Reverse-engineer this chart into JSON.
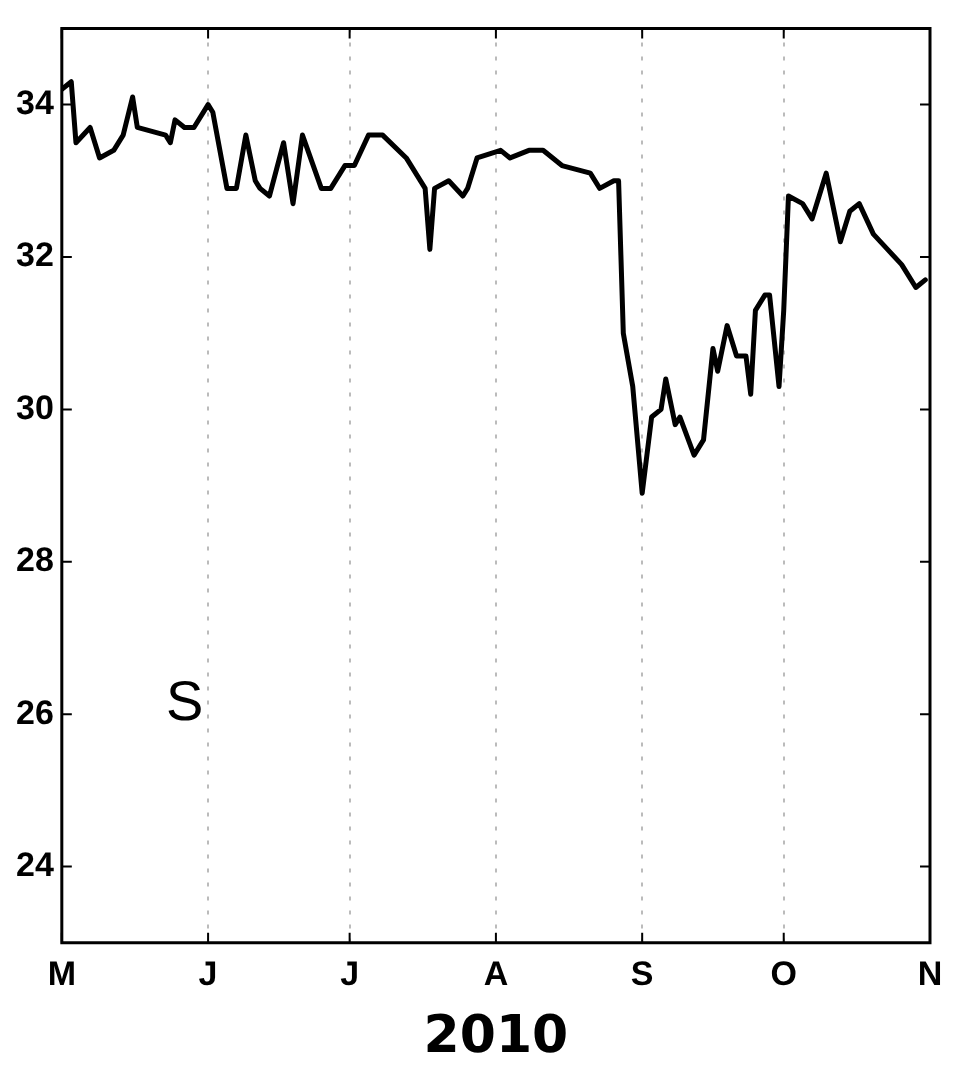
{
  "chart_data": {
    "type": "line",
    "xlabel": "2010",
    "annotations": [
      "S"
    ],
    "categories": [
      "M",
      null,
      null,
      null,
      null,
      null,
      null,
      null,
      null,
      null,
      null,
      null,
      null,
      null,
      null,
      null,
      null,
      null,
      null,
      null,
      null,
      null,
      null,
      null,
      null,
      null,
      null,
      null,
      null,
      null,
      null,
      "J",
      null,
      null,
      null,
      null,
      null,
      null,
      null,
      null,
      null,
      null,
      null,
      null,
      null,
      null,
      null,
      null,
      null,
      null,
      null,
      null,
      null,
      null,
      null,
      null,
      null,
      null,
      null,
      null,
      null,
      "J",
      null,
      null,
      null,
      null,
      null,
      null,
      null,
      null,
      null,
      null,
      null,
      null,
      null,
      null,
      null,
      null,
      null,
      null,
      null,
      null,
      null,
      null,
      null,
      null,
      null,
      null,
      null,
      null,
      null,
      null,
      "A",
      null,
      null,
      null,
      null,
      null,
      null,
      null,
      null,
      null,
      null,
      null,
      null,
      null,
      null,
      null,
      null,
      null,
      null,
      null,
      null,
      null,
      null,
      null,
      null,
      null,
      null,
      null,
      null,
      null,
      null,
      "S",
      null,
      null,
      null,
      null,
      null,
      null,
      null,
      null,
      null,
      null,
      null,
      null,
      null,
      null,
      null,
      null,
      null,
      null,
      null,
      null,
      null,
      null,
      null,
      null,
      null,
      null,
      null,
      null,
      null,
      "O",
      null,
      null,
      null,
      null,
      null,
      null,
      null,
      null,
      null,
      null,
      null,
      null,
      null,
      null,
      null,
      null,
      null,
      null,
      null,
      null,
      null,
      null,
      null,
      null,
      null,
      null,
      null,
      null,
      null,
      null,
      "N"
    ],
    "series": [
      {
        "color": "#000000",
        "values": [
          34.2,
          null,
          34.3,
          33.5,
          null,
          null,
          33.7,
          null,
          33.3,
          null,
          null,
          33.4,
          null,
          33.6,
          null,
          34.1,
          33.7,
          null,
          null,
          null,
          null,
          null,
          33.6,
          33.5,
          33.8,
          null,
          33.7,
          null,
          33.7,
          null,
          null,
          34.0,
          33.9,
          null,
          null,
          32.9,
          null,
          32.9,
          null,
          33.6,
          null,
          33.0,
          32.9,
          null,
          32.8,
          null,
          null,
          33.5,
          null,
          32.7,
          null,
          33.6,
          null,
          null,
          null,
          32.9,
          null,
          32.9,
          null,
          null,
          33.2,
          null,
          33.2,
          null,
          null,
          33.6,
          null,
          null,
          33.6,
          null,
          null,
          null,
          null,
          33.3,
          null,
          null,
          null,
          32.9,
          32.1,
          32.9,
          null,
          null,
          33.0,
          null,
          null,
          32.8,
          32.9,
          null,
          33.3,
          null,
          null,
          null,
          null,
          33.4,
          null,
          33.3,
          null,
          null,
          null,
          33.4,
          null,
          null,
          33.4,
          null,
          null,
          null,
          33.2,
          null,
          null,
          null,
          null,
          null,
          33.1,
          null,
          32.9,
          null,
          null,
          33.0,
          33.0,
          31.0,
          null,
          30.3,
          null,
          28.9,
          null,
          29.9,
          null,
          30.0,
          30.4,
          null,
          29.8,
          29.9,
          null,
          null,
          29.4,
          null,
          29.6,
          null,
          30.8,
          30.5,
          null,
          31.1,
          null,
          30.7,
          null,
          30.7,
          30.2,
          31.3,
          null,
          31.5,
          31.5,
          null,
          30.3,
          31.3,
          32.8,
          null,
          null,
          32.7,
          null,
          32.5,
          null,
          null,
          33.1,
          null,
          null,
          32.2,
          null,
          32.6,
          null,
          32.7,
          null,
          null,
          32.3,
          null,
          null,
          32.1,
          null,
          null,
          31.9,
          null,
          null,
          31.6,
          null,
          31.7,
          null
        ]
      }
    ],
    "ylim": [
      23,
      35
    ],
    "yticks": [
      24,
      26,
      28,
      30,
      32,
      34
    ],
    "grid": "x",
    "marker": "none",
    "line_style": "solid"
  }
}
